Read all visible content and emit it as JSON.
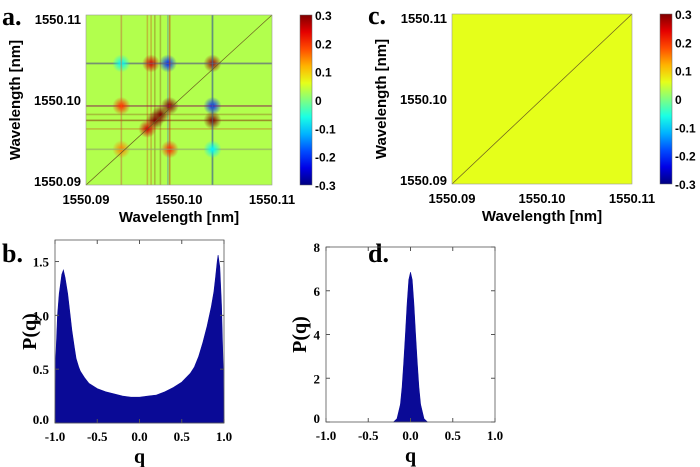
{
  "chart_data": [
    {
      "panel": "a.",
      "type": "heatmap",
      "xlabel": "Wavelength [nm]",
      "ylabel": "Wavelength [nm]",
      "xlim": [
        1550.09,
        1550.11
      ],
      "ylim": [
        1550.09,
        1550.11
      ],
      "xticks": [
        "1550.09",
        "1550.10",
        "1550.11"
      ],
      "yticks": [
        "1550.09",
        "1550.10",
        "1550.11"
      ],
      "colorbar": {
        "range": [
          -0.3,
          0.3
        ],
        "ticks": [
          "0.3",
          "0.2",
          "0.1",
          "0",
          "-0.1",
          "-0.2",
          "-0.3"
        ],
        "colormap": "jet"
      },
      "background_value": 0.03,
      "features": [
        {
          "x": 1550.0988,
          "y": 1550.1043,
          "value": -0.2
        },
        {
          "x": 1550.1036,
          "y": 1550.1043,
          "value": 0.28
        },
        {
          "x": 1550.097,
          "y": 1550.1043,
          "value": 0.25
        },
        {
          "x": 1550.0938,
          "y": 1550.1043,
          "value": -0.08
        },
        {
          "x": 1550.099,
          "y": 1550.0993,
          "value": 0.3
        },
        {
          "x": 1550.1036,
          "y": 1550.0993,
          "value": -0.2
        },
        {
          "x": 1550.098,
          "y": 1550.0983,
          "value": 0.3
        },
        {
          "x": 1550.0974,
          "y": 1550.0976,
          "value": 0.3
        },
        {
          "x": 1550.0966,
          "y": 1550.0966,
          "value": 0.25
        },
        {
          "x": 1550.0938,
          "y": 1550.0993,
          "value": 0.2
        },
        {
          "x": 1550.099,
          "y": 1550.0942,
          "value": 0.2
        },
        {
          "x": 1550.1036,
          "y": 1550.0976,
          "value": 0.3
        },
        {
          "x": 1550.0938,
          "y": 1550.0942,
          "value": 0.15
        },
        {
          "x": 1550.1036,
          "y": 1550.0942,
          "value": -0.08
        }
      ]
    },
    {
      "panel": "b.",
      "type": "area",
      "xlabel": "q",
      "ylabel": "P(q)",
      "xlim": [
        -1.0,
        1.0
      ],
      "ylim": [
        0.0,
        1.7
      ],
      "xticks": [
        "-1.0",
        "-0.5",
        "0.0",
        "0.5",
        "1.0"
      ],
      "yticks": [
        "0.0",
        "0.5",
        "1.0",
        "1.5"
      ],
      "color": "#0a0a96",
      "x": [
        -1.0,
        -0.99,
        -0.97,
        -0.95,
        -0.92,
        -0.9,
        -0.88,
        -0.85,
        -0.82,
        -0.8,
        -0.77,
        -0.75,
        -0.72,
        -0.7,
        -0.65,
        -0.6,
        -0.5,
        -0.4,
        -0.3,
        -0.2,
        -0.1,
        0.0,
        0.1,
        0.2,
        0.3,
        0.4,
        0.5,
        0.6,
        0.65,
        0.7,
        0.75,
        0.8,
        0.85,
        0.88,
        0.9,
        0.92,
        0.93,
        0.95,
        0.97,
        0.99,
        1.0
      ],
      "y": [
        0.0,
        0.6,
        1.0,
        1.2,
        1.38,
        1.42,
        1.35,
        1.2,
        1.0,
        0.86,
        0.7,
        0.6,
        0.52,
        0.48,
        0.42,
        0.37,
        0.32,
        0.29,
        0.27,
        0.25,
        0.24,
        0.24,
        0.25,
        0.26,
        0.29,
        0.33,
        0.38,
        0.46,
        0.52,
        0.62,
        0.75,
        0.9,
        1.08,
        1.22,
        1.35,
        1.5,
        1.56,
        1.45,
        1.1,
        0.5,
        0.0
      ]
    },
    {
      "panel": "c.",
      "type": "heatmap",
      "xlabel": "Wavelength [nm]",
      "ylabel": "Wavelength [nm]",
      "xlim": [
        1550.09,
        1550.11
      ],
      "ylim": [
        1550.09,
        1550.11
      ],
      "xticks": [
        "1550.09",
        "1550.10",
        "1550.11"
      ],
      "yticks": [
        "1550.09",
        "1550.10",
        "1550.11"
      ],
      "colorbar": {
        "range": [
          -0.3,
          0.3
        ],
        "ticks": [
          "0.3",
          "0.2",
          "0.1",
          "0",
          "-0.1",
          "-0.2",
          "-0.3"
        ],
        "colormap": "jet"
      },
      "background_value": 0.06,
      "features": []
    },
    {
      "panel": "d.",
      "type": "area",
      "xlabel": "q",
      "ylabel": "P(q)",
      "xlim": [
        -1.0,
        1.0
      ],
      "ylim": [
        0,
        8
      ],
      "xticks": [
        "-1.0",
        "-0.5",
        "0.0",
        "0.5",
        "1.0"
      ],
      "yticks": [
        "0",
        "2",
        "4",
        "6",
        "8"
      ],
      "color": "#0a0a96",
      "x": [
        -0.2,
        -0.16,
        -0.12,
        -0.1,
        -0.08,
        -0.06,
        -0.04,
        -0.02,
        0.0,
        0.02,
        0.04,
        0.06,
        0.08,
        0.1,
        0.12,
        0.16,
        0.2
      ],
      "y": [
        0.0,
        0.15,
        0.8,
        1.6,
        2.7,
        4.0,
        5.4,
        6.5,
        6.85,
        6.5,
        5.4,
        4.0,
        2.7,
        1.6,
        0.8,
        0.15,
        0.0
      ]
    }
  ]
}
